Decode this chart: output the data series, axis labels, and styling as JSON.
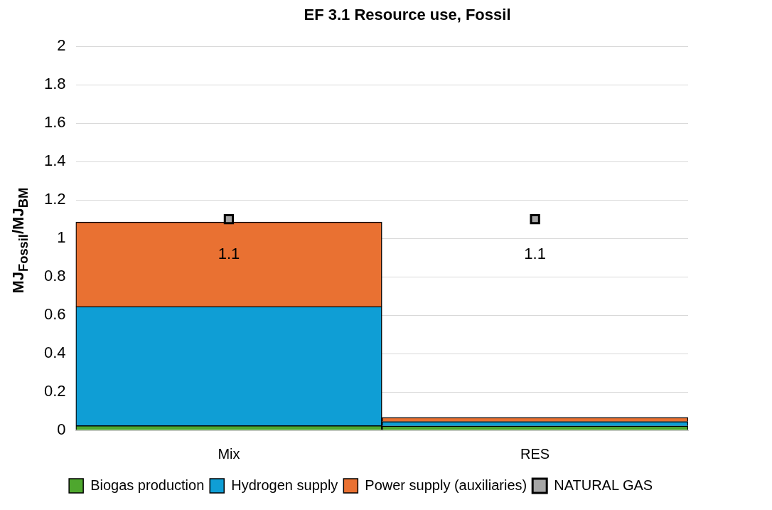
{
  "chart_data": {
    "type": "bar",
    "title": "EF 3.1 Resource use, Fossil",
    "ylabel": "MJ$_{Fossil}$/MJ$_{BM}$",
    "categories": [
      "Mix",
      "RES"
    ],
    "stacked": true,
    "series": [
      {
        "name": "Biogas production",
        "color": "#4ea72e",
        "values": [
          0.025,
          0.023
        ]
      },
      {
        "name": "Hydrogen supply",
        "color": "#0f9ed5",
        "values": [
          0.62,
          0.023
        ]
      },
      {
        "name": "Power supply (auxiliaries)",
        "color": "#e97132",
        "values": [
          0.44,
          0.021
        ]
      },
      {
        "name": "NATURAL GAS",
        "type": "scatter",
        "marker": "square",
        "color": "#000000",
        "values": [
          1.1,
          1.1
        ],
        "value_labels": [
          "1.1",
          "1.1"
        ]
      }
    ],
    "ylim": [
      0,
      2
    ],
    "yticks": [
      0,
      0.2,
      0.4,
      0.6,
      0.8,
      1,
      1.2,
      1.4,
      1.6,
      1.8,
      2
    ],
    "grid": "y",
    "legend": "bottom"
  }
}
